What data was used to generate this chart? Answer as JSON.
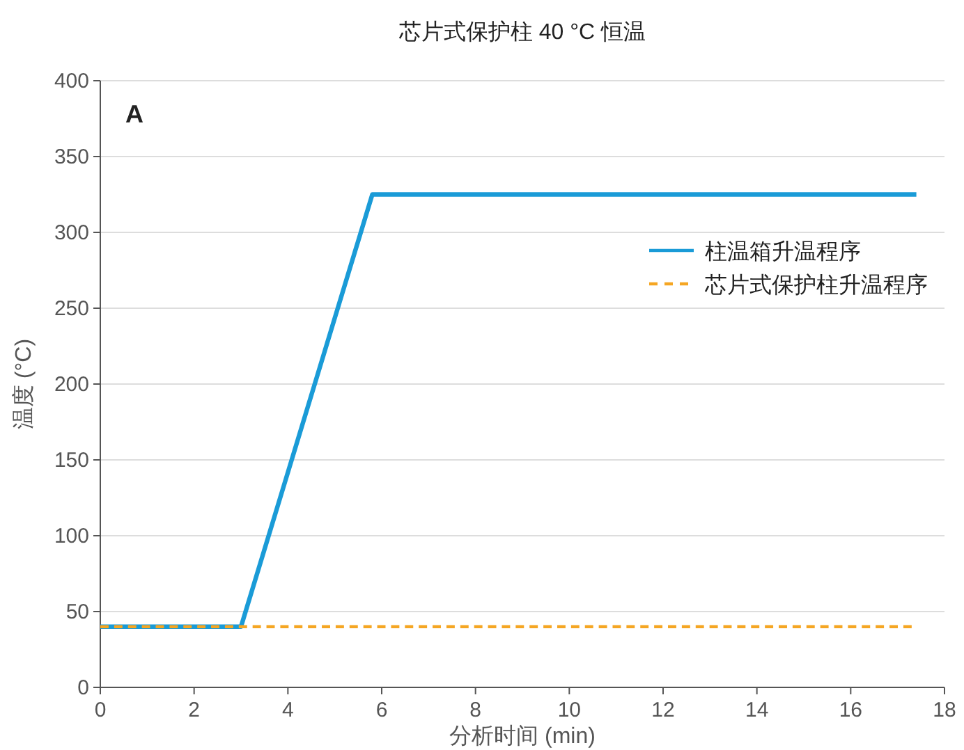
{
  "chart_data": {
    "type": "line",
    "title": "芯片式保护柱 40 °C 恒温",
    "xlabel": "分析时间 (min)",
    "ylabel": "温度 (°C)",
    "annotations": [
      "A"
    ],
    "xlim": [
      0,
      18
    ],
    "xticks": [
      0,
      2,
      4,
      6,
      8,
      10,
      12,
      14,
      16,
      18
    ],
    "ylim": [
      0,
      400
    ],
    "yticks": [
      0,
      50,
      100,
      150,
      200,
      250,
      300,
      350,
      400
    ],
    "grid": "y",
    "legend": "right",
    "marker": "none",
    "series": [
      {
        "name": "柱温箱升温程序",
        "color": "#1a9bd7",
        "line_style": "solid",
        "x": [
          0,
          3,
          5.8,
          17.4
        ],
        "values": [
          40,
          40,
          325,
          325
        ]
      },
      {
        "name": "芯片式保护柱升温程序",
        "color": "#f5a623",
        "line_style": "dashed",
        "x": [
          0,
          17.3
        ],
        "values": [
          40,
          40
        ]
      }
    ]
  }
}
